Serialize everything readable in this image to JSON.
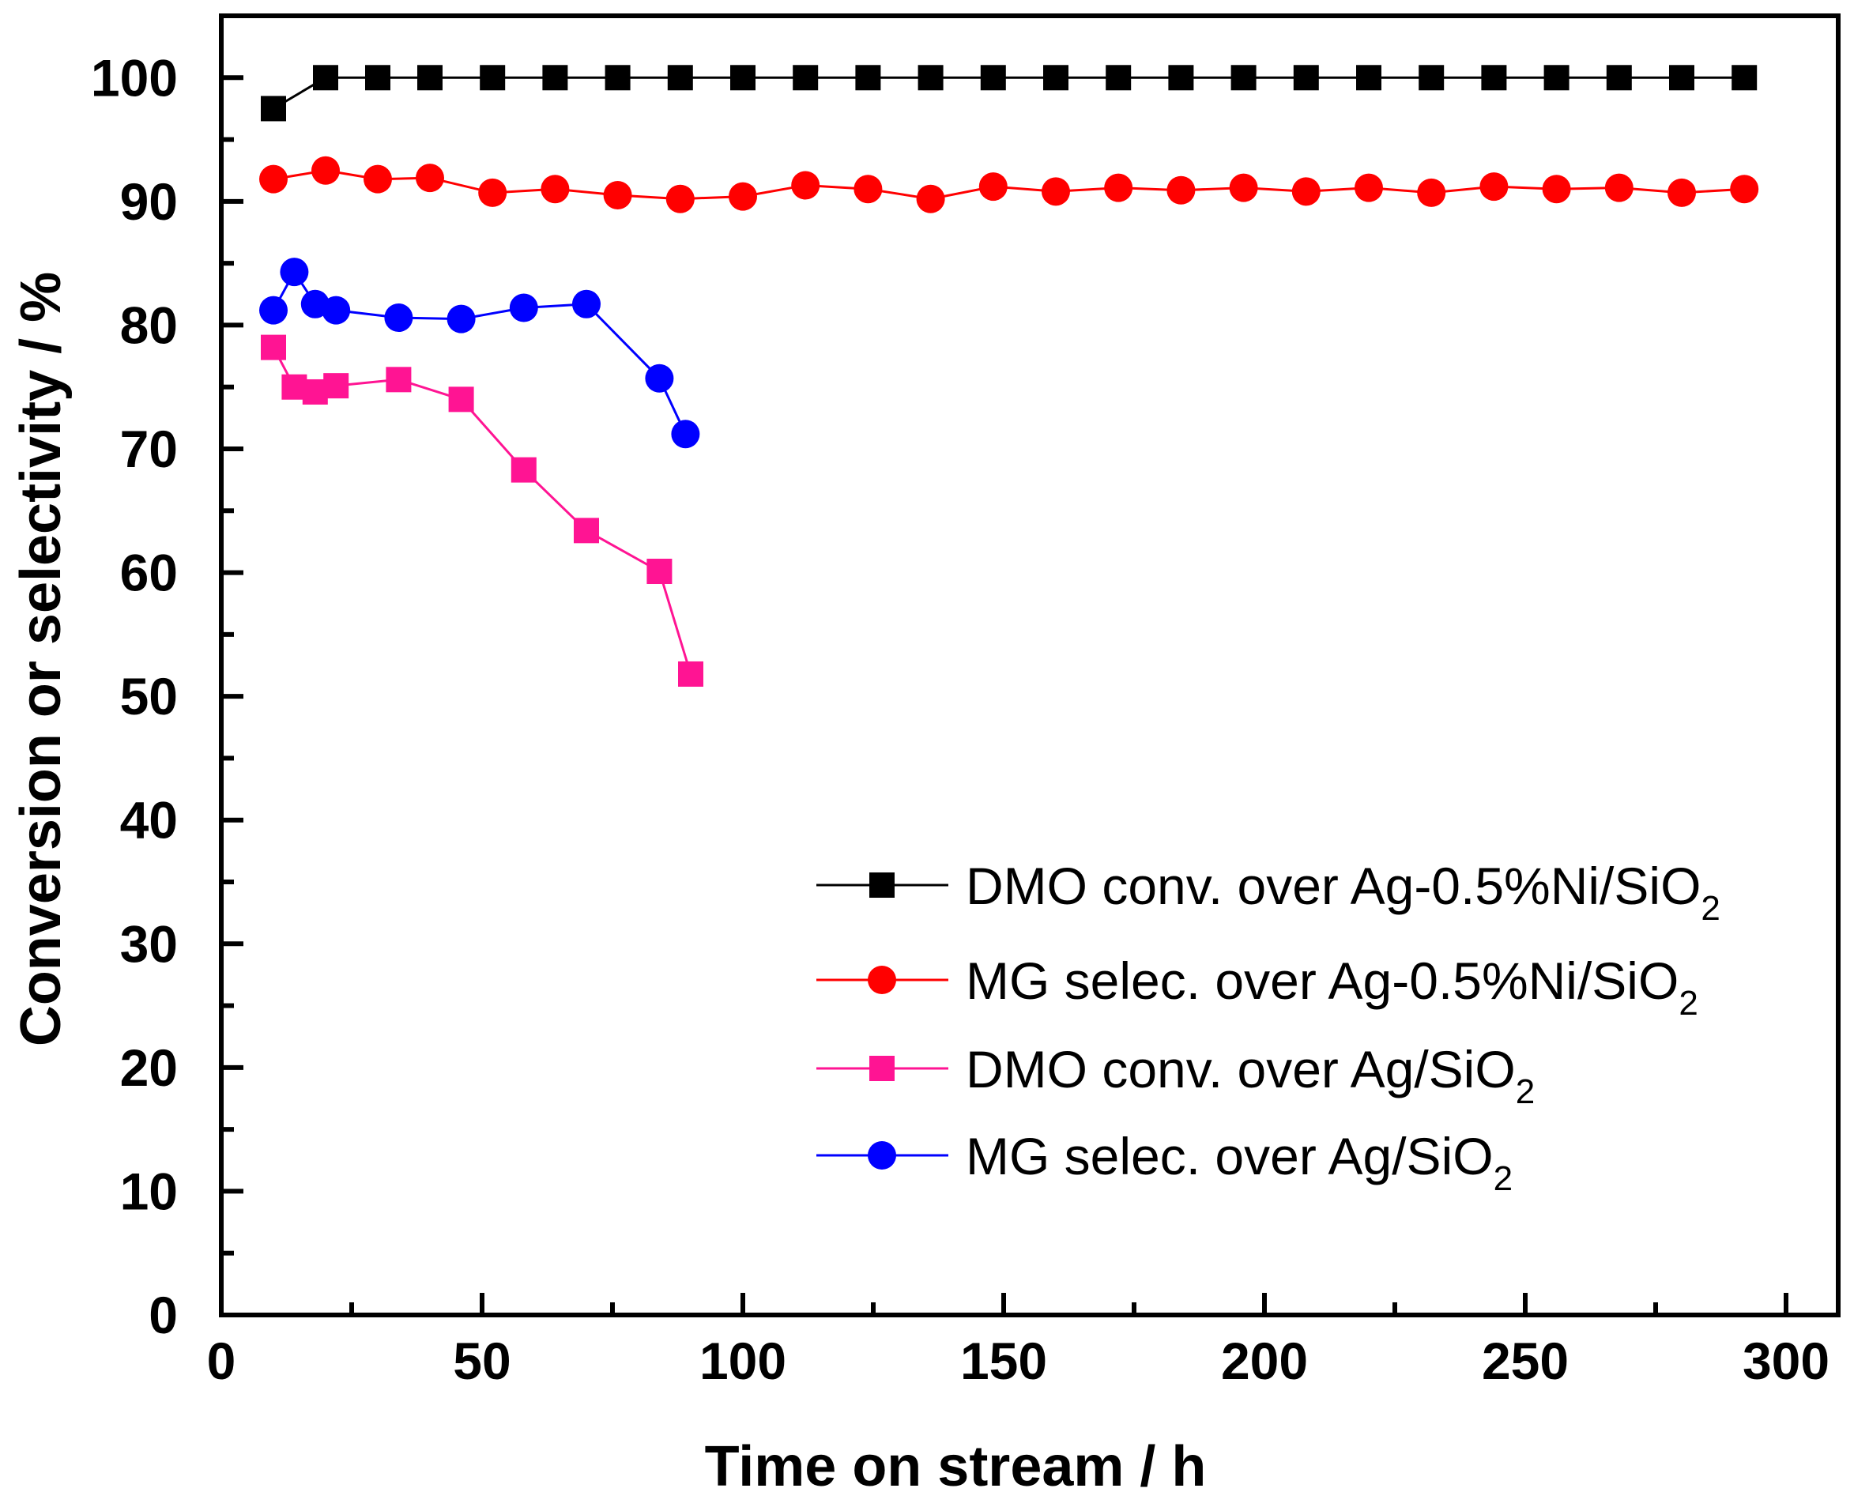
{
  "chart_data": {
    "type": "line",
    "title": "",
    "xlabel": "Time on stream / h",
    "ylabel": "Conversion or selectivity / %",
    "xlim": [
      0,
      310
    ],
    "ylim": [
      0,
      105
    ],
    "x_ticks": [
      0,
      50,
      100,
      150,
      200,
      250,
      300
    ],
    "y_ticks": [
      0,
      10,
      20,
      30,
      40,
      50,
      60,
      70,
      80,
      90,
      100
    ],
    "legend_position": "bottom-right",
    "series": [
      {
        "name": "DMO conv. over Ag-0.5%Ni/SiO2",
        "label_main": "DMO conv. over Ag-0.5%Ni/SiO",
        "label_sub": "2",
        "color": "#000000",
        "marker": "square",
        "x": [
          10,
          20,
          30,
          40,
          52,
          64,
          76,
          88,
          100,
          112,
          124,
          136,
          148,
          160,
          172,
          184,
          196,
          208,
          220,
          232,
          244,
          256,
          268,
          280,
          292
        ],
        "values": [
          97.5,
          100,
          100,
          100,
          100,
          100,
          100,
          100,
          100,
          100,
          100,
          100,
          100,
          100,
          100,
          100,
          100,
          100,
          100,
          100,
          100,
          100,
          100,
          100,
          100
        ]
      },
      {
        "name": "MG selec. over Ag-0.5%Ni/SiO2",
        "label_main": "MG selec. over Ag-0.5%Ni/SiO",
        "label_sub": "2",
        "color": "#ff0000",
        "marker": "circle",
        "x": [
          10,
          20,
          30,
          40,
          52,
          64,
          76,
          88,
          100,
          112,
          124,
          136,
          148,
          160,
          172,
          184,
          196,
          208,
          220,
          232,
          244,
          256,
          268,
          280,
          292
        ],
        "values": [
          91.8,
          92.5,
          91.8,
          91.9,
          90.7,
          91.0,
          90.5,
          90.2,
          90.4,
          91.3,
          91.0,
          90.2,
          91.2,
          90.8,
          91.1,
          90.9,
          91.1,
          90.8,
          91.1,
          90.7,
          91.2,
          91.0,
          91.1,
          90.7,
          91.0
        ]
      },
      {
        "name": "DMO conv. over Ag/SiO2",
        "label_main": "DMO conv. over Ag/SiO",
        "label_sub": "2",
        "color": "#ff1493",
        "marker": "square",
        "x": [
          10,
          14,
          18,
          22,
          34,
          46,
          58,
          70,
          84,
          90
        ],
        "values": [
          78.2,
          75.0,
          74.6,
          75.1,
          75.6,
          74.0,
          68.3,
          63.4,
          60.1,
          51.8
        ]
      },
      {
        "name": "MG selec. over Ag/SiO2",
        "label_main": "MG selec. over Ag/SiO",
        "label_sub": "2",
        "color": "#0000ff",
        "marker": "circle",
        "x": [
          10,
          14,
          18,
          22,
          34,
          46,
          58,
          70,
          84,
          89
        ],
        "values": [
          81.2,
          84.3,
          81.7,
          81.2,
          80.6,
          80.5,
          81.4,
          81.7,
          75.7,
          71.2
        ]
      }
    ]
  }
}
